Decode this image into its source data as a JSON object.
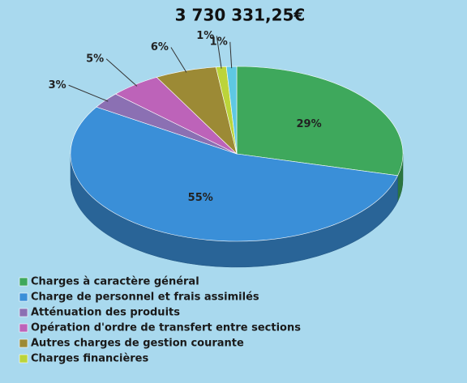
{
  "chart_data": {
    "type": "pie3d",
    "subtitle": "3 730 331,25€",
    "categories": [
      "Charges à caractère général",
      "Charge de personnel et frais assimilés",
      "Atténuation des produits",
      "Opération d'ordre de transfert entre sections",
      "Autres charges de gestion courante",
      "Charges financières",
      null
    ],
    "values": [
      29,
      55,
      3,
      5,
      6,
      1,
      1
    ],
    "value_labels": [
      "29%",
      "55%",
      "3%",
      "5%",
      "6%",
      "1%",
      "1%"
    ],
    "colors": [
      "#3ea85c",
      "#3a8fd8",
      "#8b70b3",
      "#bd63b9",
      "#9c8a35",
      "#bcd43a",
      "#5ec8e2"
    ]
  }
}
